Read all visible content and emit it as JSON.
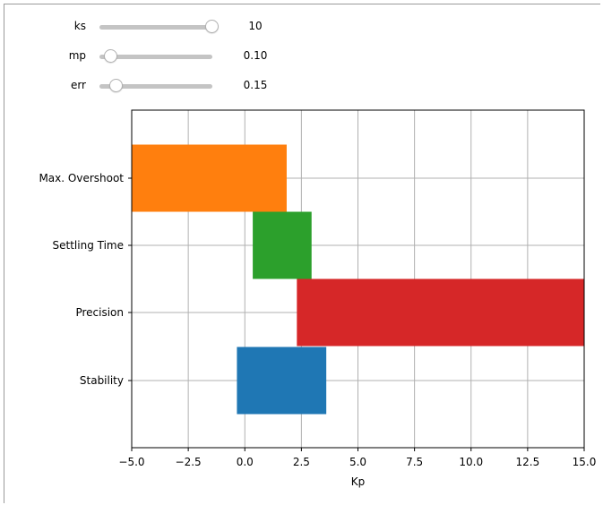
{
  "sliders": [
    {
      "name": "ks",
      "label": "ks",
      "value": 10,
      "display": "10",
      "fraction": 1.0
    },
    {
      "name": "mp",
      "label": "mp",
      "value": 0.1,
      "display": "0.10",
      "fraction": 0.1
    },
    {
      "name": "err",
      "label": "err",
      "value": 0.15,
      "display": "0.15",
      "fraction": 0.15
    }
  ],
  "chart_data": {
    "type": "bar",
    "orientation": "horizontal",
    "title": "",
    "xlabel": "Kp",
    "ylabel": "",
    "xlim": [
      -5.0,
      15.0
    ],
    "xticks": [
      "−5.0",
      "−2.5",
      "0.0",
      "2.5",
      "5.0",
      "7.5",
      "10.0",
      "12.5",
      "15.0"
    ],
    "xtick_values": [
      -5.0,
      -2.5,
      0.0,
      2.5,
      5.0,
      7.5,
      10.0,
      12.5,
      15.0
    ],
    "grid": true,
    "categories": [
      "Stability",
      "Precision",
      "Settling Time",
      "Max. Overshoot"
    ],
    "bars": [
      {
        "category": "Stability",
        "start": -0.35,
        "end": 3.6,
        "color": "#1f77b4"
      },
      {
        "category": "Precision",
        "start": 2.3,
        "end": 15.0,
        "color": "#d62728"
      },
      {
        "category": "Settling Time",
        "start": 0.35,
        "end": 2.95,
        "color": "#2ca02c"
      },
      {
        "category": "Max. Overshoot",
        "start": -5.0,
        "end": 1.85,
        "color": "#ff7f0e"
      }
    ]
  }
}
